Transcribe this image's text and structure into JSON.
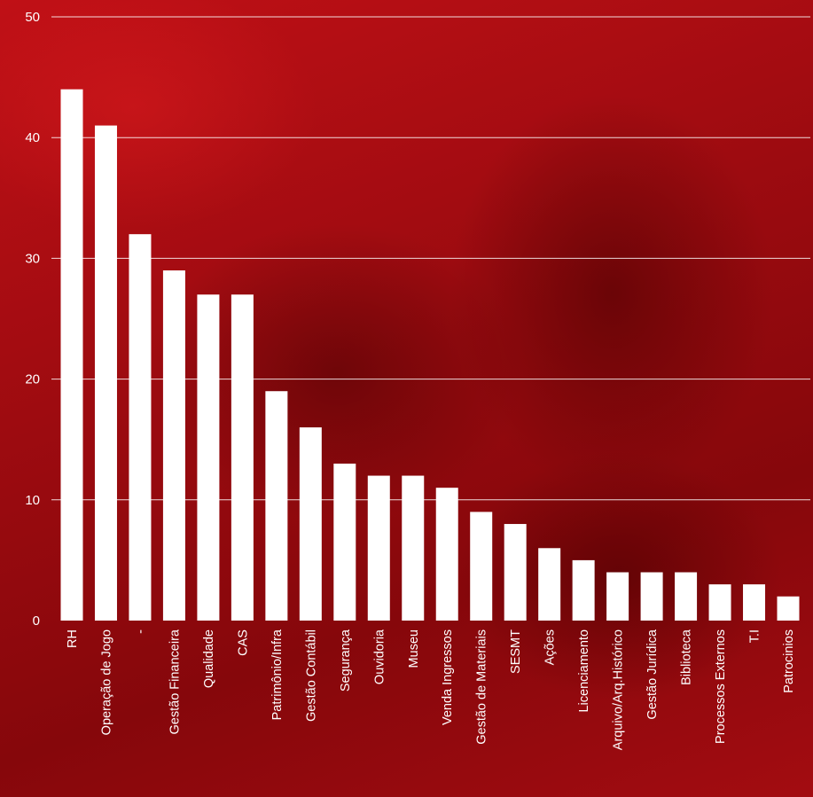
{
  "chart_data": {
    "type": "bar",
    "categories": [
      "RH",
      "Operação de Jogo",
      "-",
      "Gestão Financeira",
      "Qualidade",
      "CAS",
      "Patrimônio/Infra",
      "Gestão Contábil",
      "Segurança",
      "Ouvidoria",
      "Museu",
      "Venda Ingressos",
      "Gestão de Materiais",
      "SESMT",
      "Ações",
      "Licenciamento",
      "Arquivo/Arq.Histórico",
      "Gestão Jurídica",
      "Biblioteca",
      "Processos Externos",
      "T.I",
      "Patrocinios"
    ],
    "values": [
      44,
      41,
      32,
      29,
      27,
      27,
      19,
      16,
      13,
      12,
      12,
      11,
      9,
      8,
      6,
      5,
      4,
      4,
      4,
      3,
      3,
      2
    ],
    "ylim": [
      0,
      50
    ],
    "yticks": [
      "0",
      "10",
      "20",
      "30",
      "40",
      "50"
    ],
    "grid": true,
    "colors": {
      "bar": "#ffffff",
      "grid": "#ffffff",
      "background": "#a50d12"
    }
  }
}
